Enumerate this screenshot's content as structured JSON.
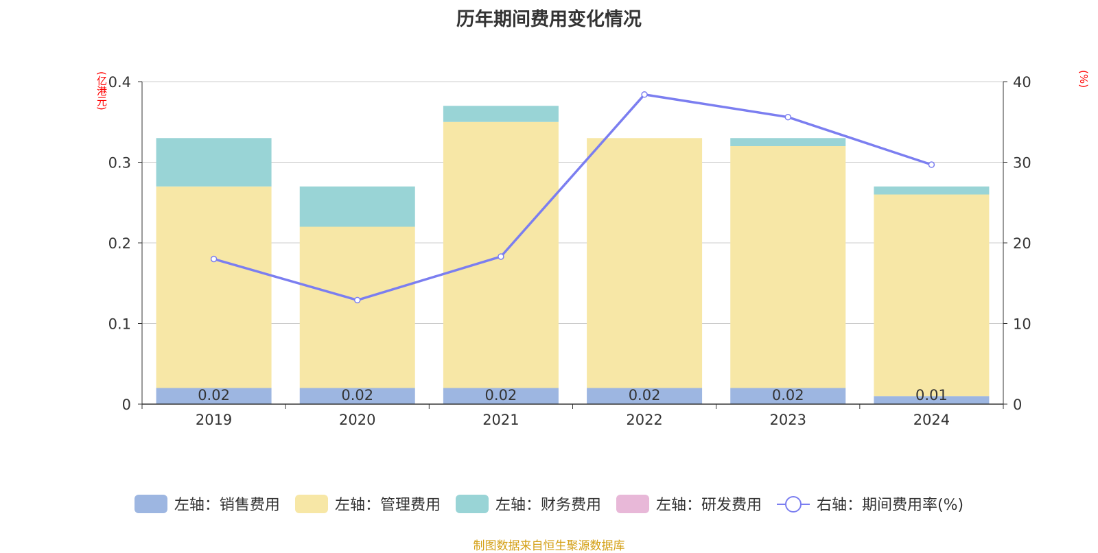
{
  "title": "历年期间费用变化情况",
  "left_unit": "(亿港元)",
  "right_unit": "(%)",
  "source": "制图数据来自恒生聚源数据库",
  "colors": {
    "sales": "#9db6e1",
    "admin": "#f7e7a6",
    "finance": "#99d4d6",
    "rnd": "#e8b8d8",
    "rate": "#7b7ef0"
  },
  "legend": [
    {
      "label": "左轴：销售费用",
      "color": "#9db6e1",
      "kind": "bar"
    },
    {
      "label": "左轴：管理费用",
      "color": "#f7e7a6",
      "kind": "bar"
    },
    {
      "label": "左轴：财务费用",
      "color": "#99d4d6",
      "kind": "bar"
    },
    {
      "label": "左轴：研发费用",
      "color": "#e8b8d8",
      "kind": "bar"
    },
    {
      "label": "右轴：期间费用率(%)",
      "color": "#7b7ef0",
      "kind": "line"
    }
  ],
  "chart_data": {
    "type": "bar",
    "categories": [
      "2019",
      "2020",
      "2021",
      "2022",
      "2023",
      "2024"
    ],
    "series": [
      {
        "name": "左轴：销售费用",
        "axis": "left",
        "values": [
          0.02,
          0.02,
          0.02,
          0.02,
          0.02,
          0.01
        ],
        "labels": [
          "0.02",
          "0.02",
          "0.02",
          "0.02",
          "0.02",
          "0.01"
        ]
      },
      {
        "name": "左轴：管理费用",
        "axis": "left",
        "values": [
          0.25,
          0.2,
          0.33,
          0.31,
          0.3,
          0.25
        ]
      },
      {
        "name": "左轴：财务费用",
        "axis": "left",
        "values": [
          0.06,
          0.05,
          0.02,
          0.0,
          0.01,
          0.01
        ]
      },
      {
        "name": "左轴：研发费用",
        "axis": "left",
        "values": [
          0,
          0,
          0,
          0,
          0,
          0
        ]
      },
      {
        "name": "右轴：期间费用率(%)",
        "axis": "right",
        "type": "line",
        "values": [
          18.0,
          12.9,
          18.3,
          38.4,
          35.6,
          29.7
        ]
      }
    ],
    "y_left": {
      "min": 0,
      "max": 0.4,
      "ticks": [
        "0",
        "0.1",
        "0.2",
        "0.3",
        "0.4"
      ]
    },
    "y_right": {
      "min": 0,
      "max": 40,
      "ticks": [
        "0",
        "10",
        "20",
        "30",
        "40"
      ]
    },
    "grid": true,
    "legend_position": "bottom"
  }
}
